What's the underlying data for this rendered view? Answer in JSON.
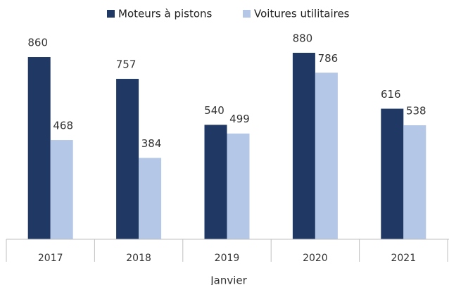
{
  "chart_data": {
    "type": "bar",
    "categories": [
      "2017",
      "2018",
      "2019",
      "2020",
      "2021"
    ],
    "x_label": "Janvier",
    "series": [
      {
        "name": "Moteurs à pistons",
        "color": "#1f3864",
        "values": [
          860,
          757,
          540,
          880,
          616
        ]
      },
      {
        "name": "Voitures utilitaires",
        "color": "#b4c7e7",
        "values": [
          468,
          384,
          499,
          786,
          538
        ]
      }
    ],
    "legend": "top"
  }
}
